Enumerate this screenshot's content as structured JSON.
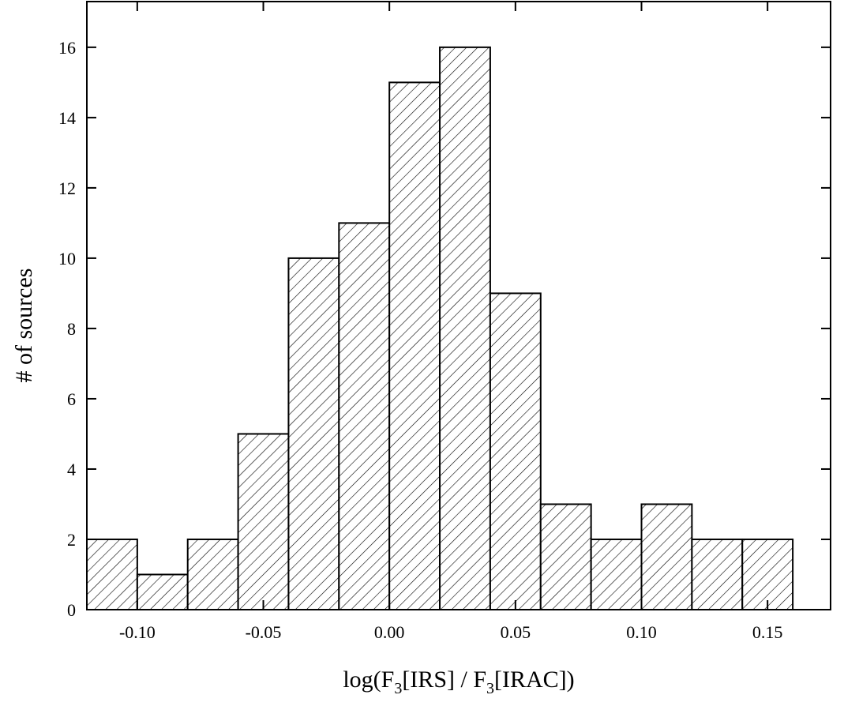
{
  "chart_data": {
    "type": "histogram",
    "xlabel_parts": [
      "log(F",
      "3",
      "[IRS] / F",
      "3",
      "[IRAC])"
    ],
    "ylabel": "# of sources",
    "bins": [
      -0.12,
      -0.1,
      -0.08,
      -0.06,
      -0.04,
      -0.02,
      0.0,
      0.02,
      0.04,
      0.06,
      0.08,
      0.1,
      0.12,
      0.14,
      0.16
    ],
    "values": [
      2,
      1,
      2,
      5,
      10,
      11,
      15,
      16,
      9,
      3,
      2,
      3,
      2,
      2
    ],
    "color": "#000000",
    "hatch": "diagonal",
    "xlim": [
      -0.12,
      0.175
    ],
    "ylim": [
      0,
      17.3
    ],
    "xticks": [
      {
        "value": -0.1,
        "label": "-0.10"
      },
      {
        "value": -0.05,
        "label": "-0.05"
      },
      {
        "value": 0,
        "label": "0.00"
      },
      {
        "value": 0.05,
        "label": "0.05"
      },
      {
        "value": 0.1,
        "label": "0.10"
      },
      {
        "value": 0.15,
        "label": "0.15"
      }
    ],
    "yticks": [
      0,
      2,
      4,
      6,
      8,
      10,
      12,
      14,
      16
    ]
  }
}
